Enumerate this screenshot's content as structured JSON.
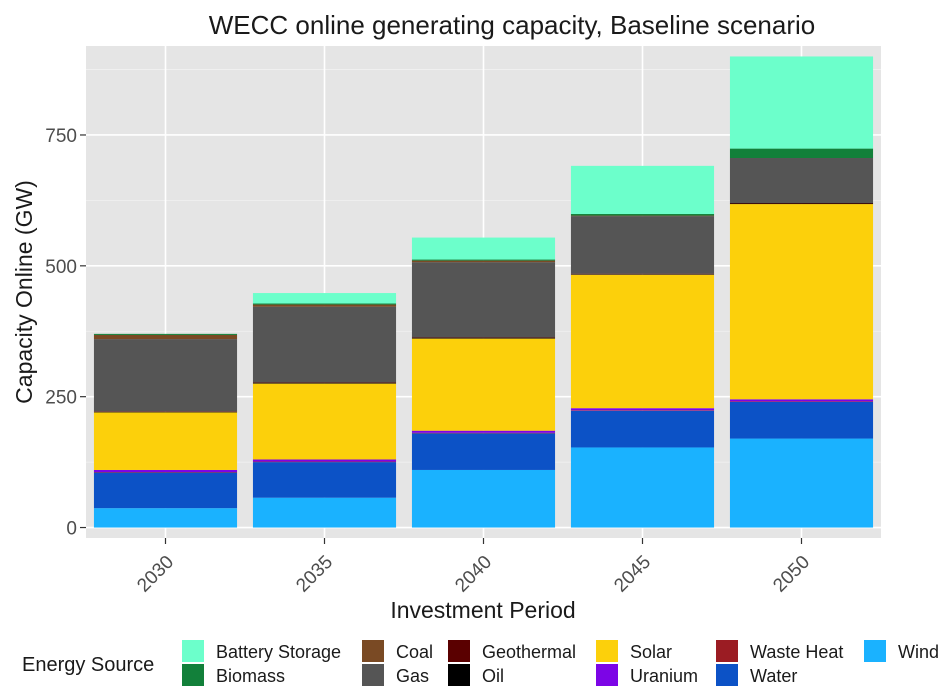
{
  "chart_data": {
    "type": "bar",
    "stacked": true,
    "title": "WECC online generating capacity, Baseline scenario",
    "xlabel": "Investment Period",
    "ylabel": "Capacity Online (GW)",
    "categories": [
      "2030",
      "2035",
      "2040",
      "2045",
      "2050"
    ],
    "ylim": [
      -20,
      920
    ],
    "yticks": [
      0,
      250,
      500,
      750
    ],
    "grid": true,
    "legend_title": "Energy Source",
    "legend_position": "bottom",
    "series": [
      {
        "name": "Wind",
        "color": "#1AB2FF",
        "values": [
          37,
          57,
          110,
          153,
          170
        ]
      },
      {
        "name": "Water",
        "color": "#0C52C6",
        "values": [
          68,
          68,
          70,
          70,
          70
        ]
      },
      {
        "name": "Waste Heat",
        "color": "#9B1C23",
        "values": [
          1,
          1,
          1,
          1,
          1
        ]
      },
      {
        "name": "Uranium",
        "color": "#7C05E6",
        "values": [
          4,
          4,
          4,
          4,
          4
        ]
      },
      {
        "name": "Solar",
        "color": "#FCD00B",
        "values": [
          110,
          145,
          176,
          255,
          373
        ]
      },
      {
        "name": "Oil",
        "color": "#000000",
        "values": [
          1,
          1,
          1,
          1,
          1
        ]
      },
      {
        "name": "Geothermal",
        "color": "#5A0000",
        "values": [
          1,
          1,
          1,
          1,
          1
        ]
      },
      {
        "name": "Gas",
        "color": "#555555",
        "values": [
          138,
          145,
          144,
          110,
          86
        ]
      },
      {
        "name": "Coal",
        "color": "#7A4A24",
        "values": [
          8,
          4,
          3,
          1,
          0
        ]
      },
      {
        "name": "Biomass",
        "color": "#12803A",
        "values": [
          2,
          2,
          2,
          3,
          18
        ]
      },
      {
        "name": "Battery Storage",
        "color": "#6CFFCB",
        "values": [
          0,
          20,
          42,
          92,
          176
        ]
      }
    ],
    "legend_order": [
      "Battery Storage",
      "Biomass",
      "Coal",
      "Gas",
      "Geothermal",
      "Oil",
      "Solar",
      "Uranium",
      "Waste Heat",
      "Water",
      "Wind"
    ]
  }
}
